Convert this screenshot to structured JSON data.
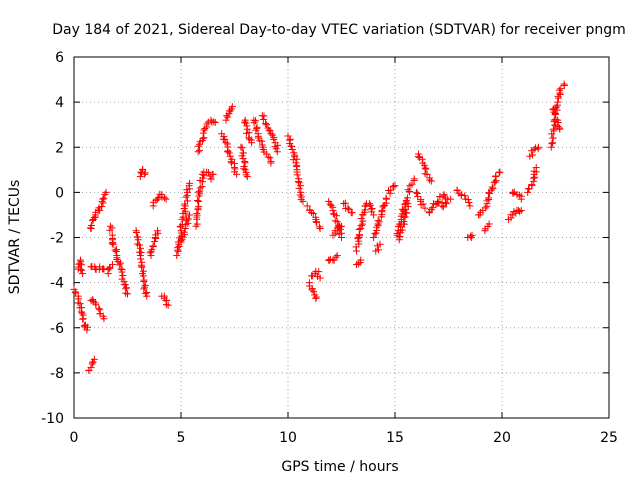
{
  "chart_data": {
    "type": "scatter",
    "title": "Day 184 of 2021, Sidereal Day-to-day VTEC variation (SDTVAR) for receiver pngm",
    "xlabel": "GPS time / hours",
    "ylabel": "SDTVAR / TECUs",
    "xlim": [
      0,
      25
    ],
    "ylim": [
      -10,
      6
    ],
    "xticks": [
      "0",
      "5",
      "10",
      "15",
      "20",
      "25"
    ],
    "xtick_values": [
      0,
      5,
      10,
      15,
      20,
      25
    ],
    "yticks": [
      "-10",
      "-8",
      "-6",
      "-4",
      "-2",
      "0",
      "2",
      "4",
      "6"
    ],
    "ytick_values": [
      -10,
      -8,
      -6,
      -4,
      -2,
      0,
      2,
      4,
      6
    ],
    "grid": true,
    "marker": "+",
    "color": "#ff0000",
    "series": [
      {
        "name": "SDTVAR",
        "segments": [
          [
            [
              0.0,
              -4.3
            ],
            [
              0.2,
              -4.6
            ],
            [
              0.35,
              -5.3
            ],
            [
              0.5,
              -5.9
            ],
            [
              0.6,
              -6.1
            ]
          ],
          [
            [
              0.2,
              -3.4
            ],
            [
              0.3,
              -3.0
            ],
            [
              0.4,
              -3.6
            ]
          ],
          [
            [
              0.8,
              -1.6
            ],
            [
              0.9,
              -1.2
            ],
            [
              1.0,
              -1.0
            ],
            [
              1.2,
              -0.8
            ],
            [
              1.35,
              -0.3
            ],
            [
              1.5,
              0.0
            ]
          ],
          [
            [
              0.8,
              -3.3
            ],
            [
              1.0,
              -3.4
            ],
            [
              1.2,
              -3.3
            ],
            [
              1.4,
              -3.4
            ]
          ],
          [
            [
              0.8,
              -4.8
            ],
            [
              1.0,
              -4.9
            ],
            [
              1.2,
              -5.2
            ],
            [
              1.4,
              -5.6
            ]
          ],
          [
            [
              0.7,
              -7.9
            ],
            [
              0.85,
              -7.6
            ],
            [
              0.95,
              -7.4
            ]
          ],
          [
            [
              1.7,
              -1.5
            ],
            [
              1.8,
              -2.1
            ],
            [
              2.0,
              -2.8
            ],
            [
              2.2,
              -3.4
            ],
            [
              2.4,
              -4.1
            ],
            [
              2.5,
              -4.5
            ]
          ],
          [
            [
              1.6,
              -3.6
            ],
            [
              1.8,
              -3.2
            ]
          ],
          [
            [
              2.9,
              -1.7
            ],
            [
              3.0,
              -2.1
            ],
            [
              3.1,
              -2.8
            ],
            [
              3.2,
              -3.6
            ],
            [
              3.3,
              -4.2
            ],
            [
              3.4,
              -4.6
            ]
          ],
          [
            [
              3.1,
              0.7
            ],
            [
              3.2,
              1.0
            ],
            [
              3.3,
              0.8
            ]
          ],
          [
            [
              3.6,
              -2.8
            ],
            [
              3.7,
              -2.4
            ],
            [
              3.8,
              -2.0
            ],
            [
              3.9,
              -1.7
            ]
          ],
          [
            [
              3.7,
              -0.6
            ],
            [
              3.9,
              -0.3
            ],
            [
              4.1,
              -0.1
            ],
            [
              4.3,
              -0.3
            ]
          ],
          [
            [
              4.1,
              -4.6
            ],
            [
              4.3,
              -4.8
            ],
            [
              4.4,
              -5.0
            ]
          ],
          [
            [
              4.8,
              -2.8
            ],
            [
              4.9,
              -2.3
            ],
            [
              5.0,
              -1.7
            ],
            [
              5.1,
              -1.1
            ],
            [
              5.2,
              -0.6
            ],
            [
              5.3,
              0.0
            ],
            [
              5.4,
              0.4
            ]
          ],
          [
            [
              5.0,
              -2.2
            ],
            [
              5.2,
              -1.6
            ],
            [
              5.4,
              -1.0
            ]
          ],
          [
            [
              5.7,
              -1.5
            ],
            [
              5.8,
              -0.7
            ],
            [
              5.9,
              0.2
            ],
            [
              6.0,
              0.8
            ],
            [
              6.2,
              0.9
            ],
            [
              6.4,
              0.6
            ],
            [
              6.5,
              0.8
            ]
          ],
          [
            [
              5.8,
              1.8
            ],
            [
              6.0,
              2.3
            ],
            [
              6.2,
              2.9
            ],
            [
              6.4,
              3.2
            ],
            [
              6.6,
              3.1
            ]
          ],
          [
            [
              6.9,
              2.6
            ],
            [
              7.1,
              2.2
            ],
            [
              7.3,
              1.6
            ],
            [
              7.5,
              1.1
            ],
            [
              7.6,
              0.8
            ]
          ],
          [
            [
              7.1,
              3.2
            ],
            [
              7.3,
              3.6
            ],
            [
              7.4,
              3.8
            ]
          ],
          [
            [
              7.8,
              2.0
            ],
            [
              7.9,
              1.5
            ],
            [
              8.0,
              1.0
            ],
            [
              8.1,
              0.7
            ]
          ],
          [
            [
              8.0,
              3.2
            ],
            [
              8.1,
              2.8
            ],
            [
              8.3,
              2.2
            ]
          ],
          [
            [
              8.4,
              3.2
            ],
            [
              8.6,
              2.6
            ],
            [
              8.8,
              2.1
            ],
            [
              9.0,
              1.7
            ],
            [
              9.2,
              1.3
            ]
          ],
          [
            [
              8.8,
              3.4
            ],
            [
              9.0,
              3.0
            ],
            [
              9.2,
              2.6
            ],
            [
              9.4,
              2.2
            ],
            [
              9.5,
              1.8
            ]
          ],
          [
            [
              10.0,
              2.5
            ],
            [
              10.2,
              1.9
            ],
            [
              10.4,
              1.2
            ],
            [
              10.5,
              0.6
            ],
            [
              10.6,
              0.0
            ],
            [
              10.7,
              -0.4
            ]
          ],
          [
            [
              10.9,
              -0.6
            ],
            [
              11.1,
              -0.9
            ],
            [
              11.3,
              -1.2
            ],
            [
              11.5,
              -1.6
            ]
          ],
          [
            [
              11.0,
              -4.0
            ],
            [
              11.2,
              -4.4
            ],
            [
              11.3,
              -4.7
            ]
          ],
          [
            [
              11.1,
              -3.7
            ],
            [
              11.3,
              -3.5
            ],
            [
              11.5,
              -3.8
            ]
          ],
          [
            [
              11.9,
              -0.4
            ],
            [
              12.1,
              -0.8
            ],
            [
              12.3,
              -1.3
            ],
            [
              12.5,
              -2.0
            ]
          ],
          [
            [
              11.9,
              -3.0
            ],
            [
              12.1,
              -3.0
            ],
            [
              12.3,
              -2.8
            ]
          ],
          [
            [
              12.1,
              -1.9
            ],
            [
              12.3,
              -1.7
            ],
            [
              12.5,
              -1.5
            ]
          ],
          [
            [
              12.6,
              -0.5
            ],
            [
              12.8,
              -0.7
            ],
            [
              13.0,
              -0.9
            ]
          ],
          [
            [
              13.2,
              -2.6
            ],
            [
              13.3,
              -2.0
            ],
            [
              13.4,
              -1.6
            ],
            [
              13.5,
              -1.0
            ],
            [
              13.6,
              -0.6
            ],
            [
              13.8,
              -0.5
            ],
            [
              14.0,
              -1.0
            ]
          ],
          [
            [
              13.2,
              -3.2
            ],
            [
              13.4,
              -3.0
            ]
          ],
          [
            [
              14.0,
              -2.0
            ],
            [
              14.2,
              -1.4
            ],
            [
              14.4,
              -0.8
            ],
            [
              14.6,
              -0.3
            ],
            [
              14.8,
              0.1
            ],
            [
              15.0,
              0.3
            ]
          ],
          [
            [
              14.1,
              -2.6
            ],
            [
              14.3,
              -2.3
            ]
          ],
          [
            [
              15.1,
              -1.9
            ],
            [
              15.3,
              -1.2
            ],
            [
              15.5,
              -0.5
            ],
            [
              15.7,
              0.3
            ],
            [
              15.9,
              0.6
            ]
          ],
          [
            [
              15.2,
              -2.1
            ],
            [
              15.4,
              -1.4
            ],
            [
              15.6,
              -0.5
            ]
          ],
          [
            [
              16.1,
              1.7
            ],
            [
              16.3,
              1.3
            ],
            [
              16.5,
              0.8
            ],
            [
              16.7,
              0.5
            ]
          ],
          [
            [
              16.0,
              0.0
            ],
            [
              16.2,
              -0.4
            ],
            [
              16.4,
              -0.7
            ]
          ],
          [
            [
              16.6,
              -0.9
            ],
            [
              16.8,
              -0.5
            ],
            [
              17.0,
              -0.4
            ],
            [
              17.2,
              -0.6
            ],
            [
              17.4,
              -0.5
            ]
          ],
          [
            [
              17.1,
              -0.2
            ],
            [
              17.3,
              -0.1
            ],
            [
              17.6,
              -0.3
            ]
          ],
          [
            [
              17.9,
              0.1
            ],
            [
              18.1,
              -0.1
            ],
            [
              18.3,
              -0.3
            ],
            [
              18.5,
              -0.6
            ]
          ],
          [
            [
              18.4,
              -2.0
            ],
            [
              18.6,
              -1.9
            ]
          ],
          [
            [
              18.9,
              -1.0
            ],
            [
              19.1,
              -0.8
            ],
            [
              19.3,
              -0.5
            ],
            [
              19.5,
              0.1
            ],
            [
              19.7,
              0.7
            ],
            [
              19.9,
              0.9
            ]
          ],
          [
            [
              19.2,
              -1.7
            ],
            [
              19.4,
              -1.4
            ]
          ],
          [
            [
              20.3,
              -1.2
            ],
            [
              20.5,
              -1.0
            ],
            [
              20.7,
              -0.8
            ],
            [
              20.9,
              -0.8
            ]
          ],
          [
            [
              20.5,
              0.0
            ],
            [
              20.7,
              -0.1
            ],
            [
              20.9,
              -0.3
            ]
          ],
          [
            [
              21.2,
              0.0
            ],
            [
              21.4,
              0.3
            ],
            [
              21.5,
              0.8
            ],
            [
              21.6,
              1.1
            ]
          ],
          [
            [
              21.3,
              1.6
            ],
            [
              21.5,
              1.9
            ],
            [
              21.7,
              2.0
            ]
          ],
          [
            [
              22.3,
              2.0
            ],
            [
              22.4,
              2.8
            ],
            [
              22.5,
              3.5
            ],
            [
              22.6,
              4.0
            ],
            [
              22.7,
              4.4
            ],
            [
              22.9,
              4.8
            ]
          ],
          [
            [
              22.4,
              3.7
            ],
            [
              22.6,
              3.2
            ],
            [
              22.7,
              2.8
            ]
          ]
        ]
      }
    ]
  }
}
